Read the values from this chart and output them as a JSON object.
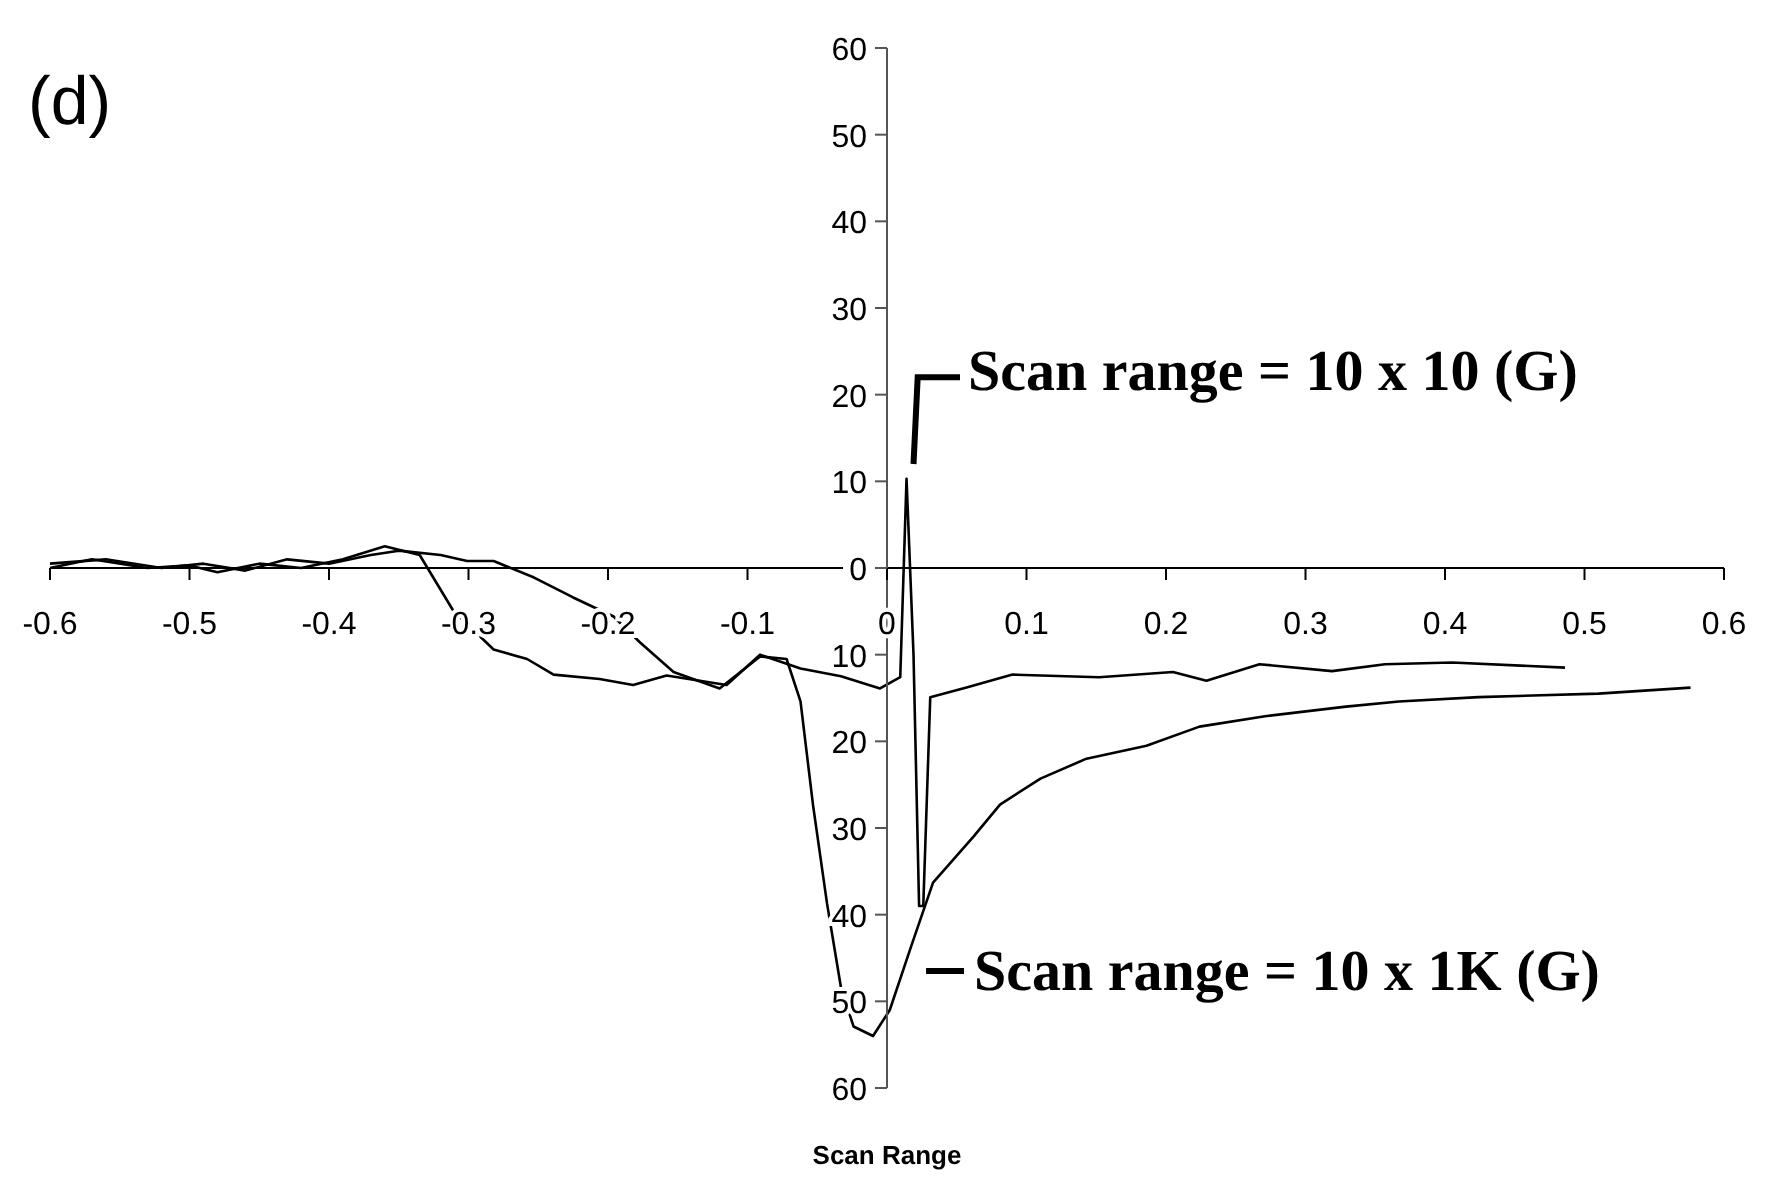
{
  "chart_data": {
    "type": "line",
    "title": "(d)",
    "xlabel": "Scan Range",
    "xlim": [
      -0.6,
      0.6
    ],
    "xticks": [
      -0.6,
      -0.5,
      -0.4,
      -0.3,
      -0.2,
      -0.1,
      0,
      0.1,
      0.2,
      0.3,
      0.4,
      0.5,
      0.6
    ],
    "ylim": [
      -60,
      60
    ],
    "yticks": [
      {
        "value": -60,
        "label": "60"
      },
      {
        "value": -50,
        "label": "50"
      },
      {
        "value": -40,
        "label": "40"
      },
      {
        "value": -30,
        "label": "30"
      },
      {
        "value": -20,
        "label": "20"
      },
      {
        "value": -10,
        "label": "10"
      },
      0,
      10,
      20,
      30,
      40,
      50,
      60
    ],
    "grid": false,
    "marker": "none",
    "line_style": "solid",
    "series": [
      {
        "name": "Scan range = 10 x 10 (G)",
        "color": "#000000",
        "x": [
          -0.6,
          -0.57,
          -0.53,
          -0.5,
          -0.48,
          -0.45,
          -0.42,
          -0.39,
          -0.36,
          -0.335,
          -0.311,
          -0.282,
          -0.258,
          -0.239,
          -0.206,
          -0.182,
          -0.158,
          -0.115,
          -0.091,
          -0.062,
          -0.033,
          -0.005,
          0.0095,
          0.014,
          0.019,
          0.023,
          0.026,
          0.031,
          0.057,
          0.09,
          0.152,
          0.205,
          0.229,
          0.267,
          0.319,
          0.357,
          0.405,
          0.486
        ],
        "values": [
          0,
          1,
          0,
          0.3,
          -0.5,
          0.5,
          0,
          1,
          2.5,
          1.5,
          -4.9,
          -9.4,
          -10.5,
          -12.3,
          -12.8,
          -13.5,
          -12.4,
          -13.5,
          -10,
          -11.6,
          -12.5,
          -13.9,
          -12.6,
          10.3,
          -10,
          -39,
          -39,
          -14.9,
          -13.8,
          -12.3,
          -12.6,
          -12,
          -13,
          -11.1,
          -11.9,
          -11.1,
          -10.9,
          -11.5
        ]
      },
      {
        "name": "Scan range = 10 x 1K (G)",
        "color": "#000000",
        "x": [
          -0.6,
          -0.56,
          -0.52,
          -0.49,
          -0.46,
          -0.43,
          -0.4,
          -0.37,
          -0.35,
          -0.32,
          -0.301,
          -0.282,
          -0.253,
          -0.225,
          -0.196,
          -0.177,
          -0.153,
          -0.12,
          -0.091,
          -0.072,
          -0.062,
          -0.053,
          -0.043,
          -0.033,
          -0.024,
          -0.01,
          0.002,
          0.017,
          0.033,
          0.062,
          0.081,
          0.11,
          0.143,
          0.186,
          0.224,
          0.271,
          0.329,
          0.367,
          0.424,
          0.51,
          0.576
        ],
        "values": [
          0.5,
          1,
          0,
          0.5,
          -0.3,
          1,
          0.5,
          1.5,
          2,
          1.5,
          0.8,
          0.8,
          -1.1,
          -3.4,
          -5.6,
          -8.6,
          -12,
          -13.9,
          -10.2,
          -10.5,
          -15.4,
          -27.4,
          -38.7,
          -48.4,
          -52.9,
          -54,
          -51,
          -43.8,
          -36.3,
          -31,
          -27.3,
          -24.3,
          -22,
          -20.5,
          -18.3,
          -17.1,
          -16,
          -15.4,
          -14.9,
          -14.5,
          -13.8
        ]
      }
    ]
  }
}
